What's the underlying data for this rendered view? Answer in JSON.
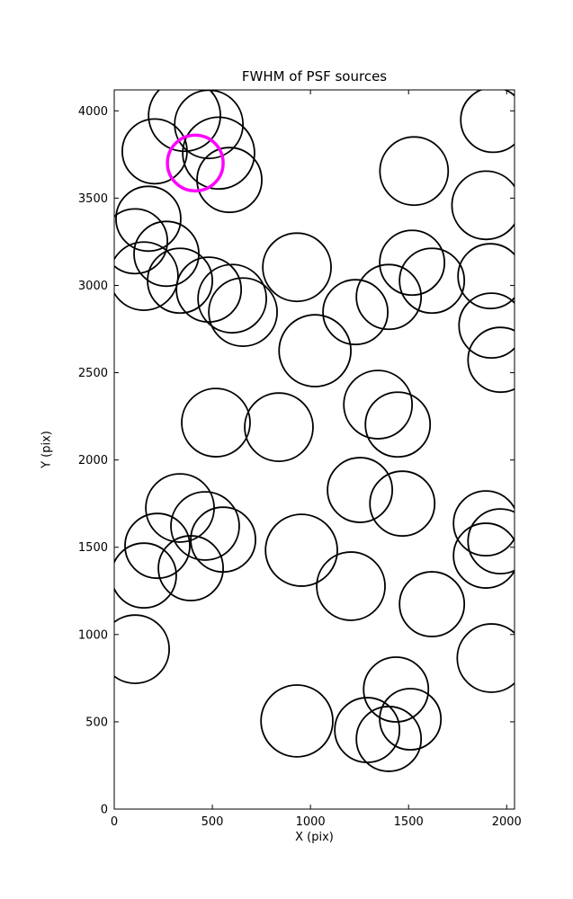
{
  "chart_data": {
    "type": "scatter",
    "title": "FWHM of PSF sources",
    "xlabel": "X (pix)",
    "ylabel": "Y (pix)",
    "xlim": [
      0,
      2040
    ],
    "ylim": [
      0,
      4120
    ],
    "x_ticks": [
      0,
      500,
      1000,
      1500,
      2000
    ],
    "y_ticks": [
      0,
      500,
      1000,
      1500,
      2000,
      2500,
      3000,
      3500,
      4000
    ],
    "grid": false,
    "legend": null,
    "marker_style": {
      "fill": "none",
      "stroke": "#000000",
      "stroke_width": 1.8
    },
    "highlight_style": {
      "stroke": "#ff00ff",
      "stroke_width": 3.5
    },
    "points": [
      {
        "x": 358,
        "y": 3974,
        "r": 183
      },
      {
        "x": 482,
        "y": 3923,
        "r": 174
      },
      {
        "x": 206,
        "y": 3768,
        "r": 165
      },
      {
        "x": 532,
        "y": 3758,
        "r": 183
      },
      {
        "x": 587,
        "y": 3604,
        "r": 165
      },
      {
        "x": 1931,
        "y": 3948,
        "r": 165
      },
      {
        "x": 1528,
        "y": 3655,
        "r": 174
      },
      {
        "x": 1895,
        "y": 3459,
        "r": 174
      },
      {
        "x": 174,
        "y": 3382,
        "r": 165
      },
      {
        "x": 106,
        "y": 3253,
        "r": 165
      },
      {
        "x": 266,
        "y": 3181,
        "r": 165
      },
      {
        "x": 151,
        "y": 3053,
        "r": 174
      },
      {
        "x": 335,
        "y": 3027,
        "r": 165
      },
      {
        "x": 482,
        "y": 2976,
        "r": 165
      },
      {
        "x": 601,
        "y": 2924,
        "r": 174
      },
      {
        "x": 931,
        "y": 3104,
        "r": 174
      },
      {
        "x": 1518,
        "y": 3130,
        "r": 165
      },
      {
        "x": 1619,
        "y": 3027,
        "r": 165
      },
      {
        "x": 1917,
        "y": 3053,
        "r": 165
      },
      {
        "x": 656,
        "y": 2847,
        "r": 174
      },
      {
        "x": 1229,
        "y": 2847,
        "r": 165
      },
      {
        "x": 1399,
        "y": 2934,
        "r": 165
      },
      {
        "x": 1023,
        "y": 2626,
        "r": 183
      },
      {
        "x": 1922,
        "y": 2770,
        "r": 165
      },
      {
        "x": 1968,
        "y": 2574,
        "r": 165
      },
      {
        "x": 518,
        "y": 2214,
        "r": 174
      },
      {
        "x": 839,
        "y": 2188,
        "r": 174
      },
      {
        "x": 1344,
        "y": 2317,
        "r": 174
      },
      {
        "x": 1445,
        "y": 2203,
        "r": 165
      },
      {
        "x": 1252,
        "y": 1828,
        "r": 165
      },
      {
        "x": 1468,
        "y": 1750,
        "r": 165
      },
      {
        "x": 335,
        "y": 1725,
        "r": 174
      },
      {
        "x": 463,
        "y": 1622,
        "r": 174
      },
      {
        "x": 555,
        "y": 1544,
        "r": 165
      },
      {
        "x": 220,
        "y": 1508,
        "r": 165
      },
      {
        "x": 390,
        "y": 1380,
        "r": 165
      },
      {
        "x": 151,
        "y": 1338,
        "r": 165
      },
      {
        "x": 954,
        "y": 1483,
        "r": 183
      },
      {
        "x": 1206,
        "y": 1277,
        "r": 174
      },
      {
        "x": 1894,
        "y": 1637,
        "r": 165
      },
      {
        "x": 1968,
        "y": 1534,
        "r": 165
      },
      {
        "x": 1894,
        "y": 1452,
        "r": 165
      },
      {
        "x": 1619,
        "y": 1174,
        "r": 165
      },
      {
        "x": 106,
        "y": 916,
        "r": 174
      },
      {
        "x": 1922,
        "y": 865,
        "r": 174
      },
      {
        "x": 1436,
        "y": 685,
        "r": 165
      },
      {
        "x": 931,
        "y": 505,
        "r": 183
      },
      {
        "x": 1289,
        "y": 453,
        "r": 165
      },
      {
        "x": 1399,
        "y": 402,
        "r": 165
      },
      {
        "x": 1509,
        "y": 515,
        "r": 156
      }
    ],
    "highlight": {
      "x": 413,
      "y": 3701,
      "r": 142
    }
  }
}
